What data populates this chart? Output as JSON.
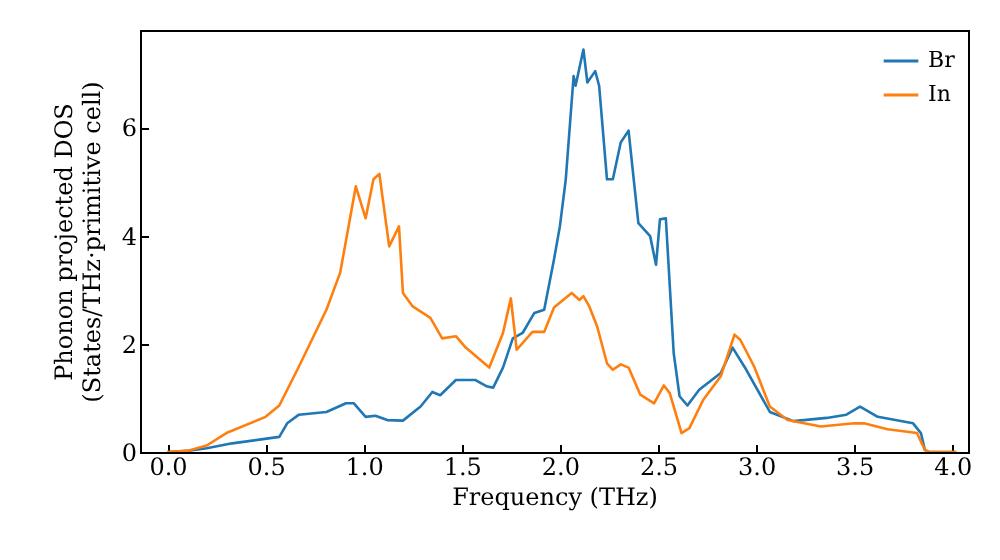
{
  "chart_data": {
    "type": "line",
    "xlabel": "Frequency (THz)",
    "ylabel": "Phonon projected DOS\n(States/THz·primitive cell)",
    "xlim": [
      -0.14,
      4.08
    ],
    "ylim": [
      0,
      7.8
    ],
    "xticks": [
      {
        "value": 0,
        "label": "0.0"
      },
      {
        "value": 0.5,
        "label": "0.5"
      },
      {
        "value": 1,
        "label": "1.0"
      },
      {
        "value": 1.5,
        "label": "1.5"
      },
      {
        "value": 2,
        "label": "2.0"
      },
      {
        "value": 2.5,
        "label": "2.5"
      },
      {
        "value": 3,
        "label": "3.0"
      },
      {
        "value": 3.5,
        "label": "3.5"
      },
      {
        "value": 4,
        "label": "4.0"
      }
    ],
    "yticks": [
      0,
      2,
      4,
      6
    ],
    "legend": "top right",
    "grid": false,
    "series": [
      {
        "name": "Br",
        "color": "#1f77b4",
        "x": [
          0,
          0.1,
          0.2,
          0.33,
          0.57,
          0.61,
          0.67,
          0.81,
          0.91,
          0.95,
          1.01,
          1.06,
          1.12,
          1.2,
          1.29,
          1.35,
          1.39,
          1.47,
          1.57,
          1.63,
          1.66,
          1.71,
          1.76,
          1.81,
          1.87,
          1.92,
          1.97,
          2.0,
          2.03,
          2.07,
          2.08,
          2.12,
          2.14,
          2.18,
          2.2,
          2.24,
          2.27,
          2.31,
          2.35,
          2.4,
          2.46,
          2.49,
          2.51,
          2.54,
          2.58,
          2.61,
          2.65,
          2.71,
          2.82,
          2.88,
          2.95,
          3.07,
          3.19,
          3.36,
          3.46,
          3.53,
          3.62,
          3.8,
          3.84,
          3.86,
          3.88,
          4.02
        ],
        "values": [
          0,
          0.02,
          0.07,
          0.16,
          0.28,
          0.53,
          0.69,
          0.74,
          0.9,
          0.9,
          0.65,
          0.67,
          0.59,
          0.58,
          0.84,
          1.11,
          1.05,
          1.33,
          1.33,
          1.21,
          1.19,
          1.56,
          2.1,
          2.2,
          2.57,
          2.63,
          3.56,
          4.17,
          5.04,
          6.95,
          6.77,
          7.44,
          6.83,
          7.04,
          6.77,
          5.04,
          5.04,
          5.72,
          5.94,
          4.23,
          3.99,
          3.46,
          4.3,
          4.32,
          1.83,
          1.03,
          0.86,
          1.15,
          1.46,
          1.93,
          1.52,
          0.74,
          0.57,
          0.63,
          0.69,
          0.84,
          0.65,
          0.53,
          0.35,
          0.04,
          0,
          0
        ]
      },
      {
        "name": "In",
        "color": "#ff7f0e",
        "x": [
          0,
          0.1,
          0.2,
          0.3,
          0.5,
          0.57,
          0.67,
          0.81,
          0.88,
          0.96,
          1.01,
          1.05,
          1.08,
          1.13,
          1.18,
          1.2,
          1.25,
          1.34,
          1.4,
          1.47,
          1.52,
          1.64,
          1.71,
          1.75,
          1.78,
          1.86,
          1.92,
          1.97,
          2.06,
          2.1,
          2.12,
          2.15,
          2.19,
          2.24,
          2.27,
          2.31,
          2.35,
          2.41,
          2.48,
          2.53,
          2.56,
          2.62,
          2.66,
          2.73,
          2.82,
          2.89,
          2.92,
          2.99,
          3.07,
          3.16,
          3.33,
          3.5,
          3.55,
          3.67,
          3.82,
          3.86,
          3.88,
          4.02
        ],
        "values": [
          0,
          0.02,
          0.12,
          0.35,
          0.65,
          0.86,
          1.58,
          2.63,
          3.31,
          4.91,
          4.32,
          5.04,
          5.14,
          3.8,
          4.17,
          2.94,
          2.69,
          2.48,
          2.1,
          2.14,
          1.93,
          1.56,
          2.2,
          2.84,
          1.89,
          2.22,
          2.22,
          2.67,
          2.94,
          2.81,
          2.88,
          2.69,
          2.32,
          1.64,
          1.52,
          1.62,
          1.56,
          1.06,
          0.9,
          1.23,
          1.09,
          0.35,
          0.44,
          0.96,
          1.4,
          2.17,
          2.07,
          1.58,
          0.84,
          0.59,
          0.47,
          0.53,
          0.53,
          0.42,
          0.35,
          0.04,
          0,
          0
        ]
      }
    ]
  }
}
